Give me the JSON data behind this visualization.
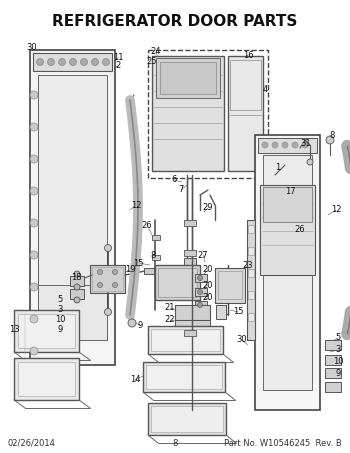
{
  "title": "REFRIGERATOR DOOR PARTS",
  "title_fontsize": 11,
  "title_weight": "bold",
  "footer_left": "02/26/2014",
  "footer_center": "8",
  "footer_right": "Part No. W10546245  Rev. B",
  "footer_fontsize": 6,
  "bg_color": "#ffffff",
  "lc": "#333333",
  "tc": "#111111",
  "fig_width": 3.5,
  "fig_height": 4.53,
  "dpi": 100
}
